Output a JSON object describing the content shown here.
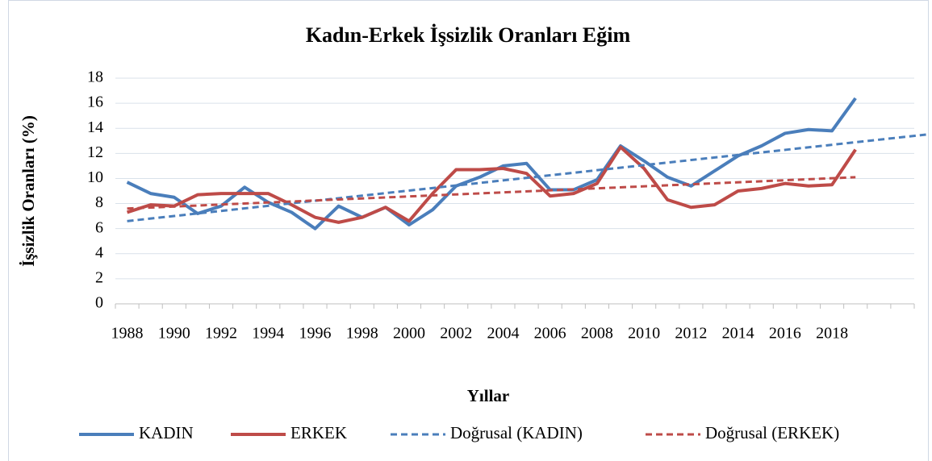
{
  "chart_data": {
    "type": "line",
    "title": "Kadın-Erkek İşsizlik Oranları Eğim",
    "x_label": "Yıllar",
    "y_label": "İşsizlik Oranları (%)",
    "categories": [
      "1988",
      null,
      "1990",
      null,
      "1992",
      null,
      "1994",
      null,
      "1996",
      null,
      "1998",
      null,
      "2000",
      null,
      "2002",
      null,
      "2004",
      null,
      "2006",
      null,
      "2008",
      null,
      "2010",
      null,
      "2012",
      null,
      "2014",
      null,
      "2016",
      null,
      "2018",
      null,
      null,
      null
    ],
    "series": [
      {
        "name": "KADIN",
        "color": "#4a7ebb",
        "values": [
          9.7,
          8.8,
          8.5,
          7.2,
          7.8,
          9.3,
          8.1,
          7.3,
          6.0,
          7.8,
          6.9,
          7.7,
          6.3,
          7.5,
          9.4,
          10.1,
          11.0,
          11.2,
          9.1,
          9.1,
          9.9,
          12.6,
          11.4,
          10.1,
          9.4,
          10.6,
          11.8,
          12.6,
          13.6,
          13.9,
          13.8,
          16.4,
          null,
          null
        ]
      },
      {
        "name": "ERKEK",
        "color": "#be4b48",
        "values": [
          7.3,
          7.9,
          7.8,
          8.7,
          8.8,
          8.8,
          8.8,
          7.9,
          6.9,
          6.5,
          6.9,
          7.7,
          6.6,
          8.8,
          10.7,
          10.7,
          10.8,
          10.4,
          8.6,
          8.8,
          9.6,
          12.5,
          10.8,
          8.3,
          7.7,
          7.9,
          9.0,
          9.2,
          9.6,
          9.4,
          9.5,
          12.3,
          null,
          null
        ]
      }
    ],
    "trendlines": [
      {
        "name": "Doğrusal (KADIN)",
        "color": "#4a7ebb",
        "x": [
          1988,
          2022
        ],
        "values": [
          6.6,
          13.5
        ]
      },
      {
        "name": "Doğrusal (ERKEK)",
        "color": "#be4b48",
        "x": [
          1988,
          2019
        ],
        "values": [
          7.6,
          10.1
        ]
      }
    ],
    "ylim": [
      0,
      18
    ],
    "yticks": [
      0,
      2,
      4,
      6,
      8,
      10,
      12,
      14,
      16,
      18
    ],
    "grid": true,
    "legend": "bottom"
  }
}
